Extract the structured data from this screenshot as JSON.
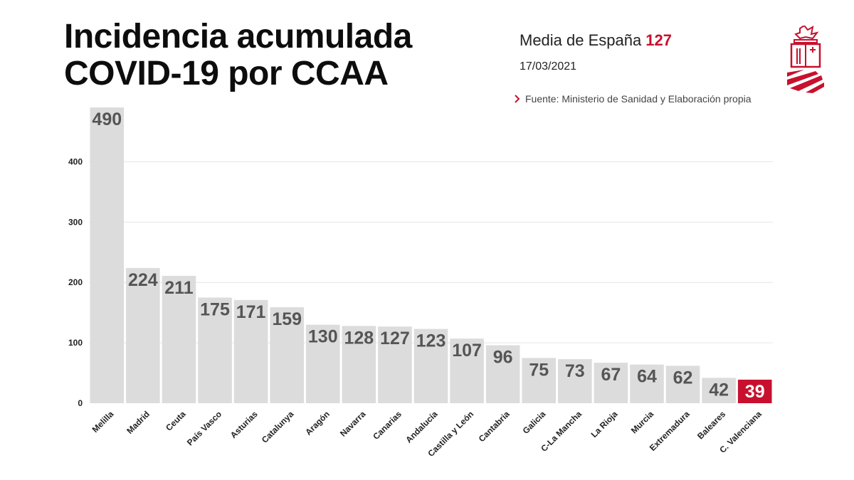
{
  "header": {
    "title_line1": "Incidencia acumulada",
    "title_line2": "COVID-19 por CCAA",
    "media_label": "Media de España",
    "media_value": "127",
    "date": "17/03/2021",
    "source": "Fuente: Ministerio de Sanidad y Elaboración propia"
  },
  "logo": {
    "icon": "generalitat-valenciana-logo-icon"
  },
  "chart_data": {
    "type": "bar",
    "title": "Incidencia acumulada COVID-19 por CCAA",
    "xlabel": "",
    "ylabel": "",
    "categories": [
      "Melilla",
      "Madrid",
      "Ceuta",
      "País Vasco",
      "Asturias",
      "Catalunya",
      "Aragón",
      "Navarra",
      "Canarias",
      "Andalucía",
      "Castilla y León",
      "Cantabria",
      "Galicia",
      "C-La Mancha",
      "La Rioja",
      "Murcia",
      "Extremadura",
      "Baleares",
      "C. Valenciana"
    ],
    "values": [
      490,
      224,
      211,
      175,
      171,
      159,
      130,
      128,
      127,
      123,
      107,
      96,
      75,
      73,
      67,
      64,
      62,
      42,
      39
    ],
    "highlight_index": 18,
    "ylim": [
      0,
      490
    ],
    "yticks": [
      0,
      100,
      200,
      300,
      400
    ],
    "grid": true,
    "legend": "none",
    "colors": {
      "bar": "#dcdcdc",
      "highlight": "#c8102e",
      "label": "#555555",
      "highlight_label": "#ffffff",
      "grid": "#e6e6e6"
    }
  }
}
